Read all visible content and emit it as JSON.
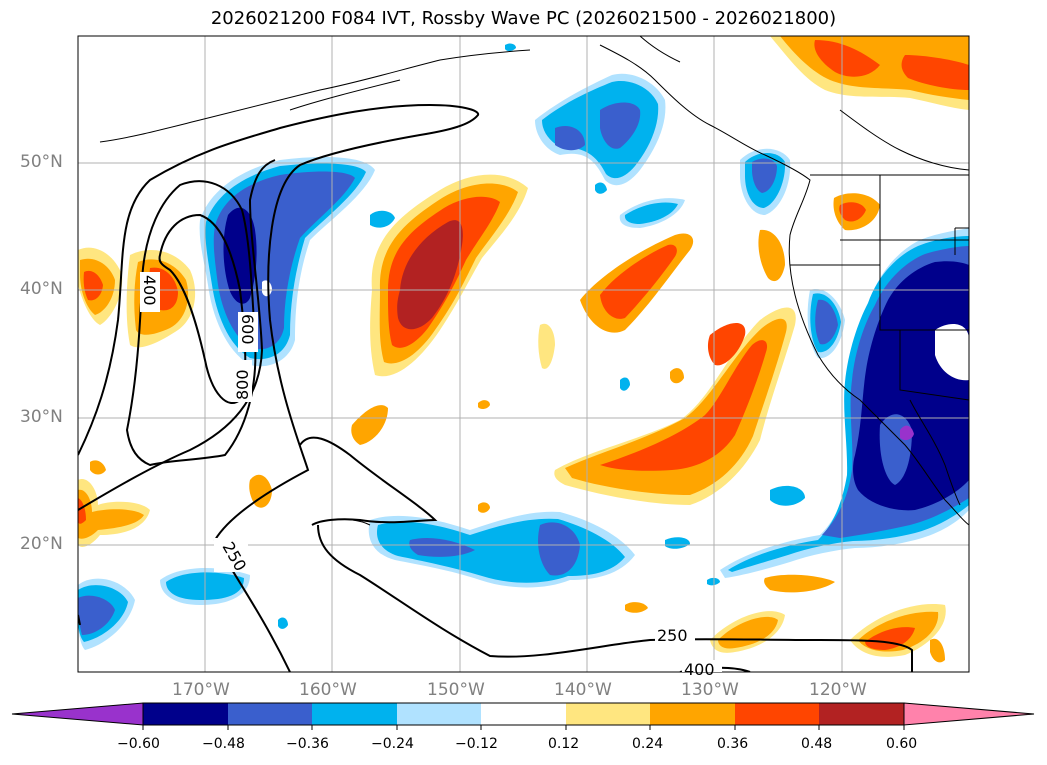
{
  "title": "2026021200 F084 IVT, Rossby Wave PC (2026021500 - 2026021800)",
  "lat_labels": [
    "50°N",
    "40°N",
    "30°N",
    "20°N"
  ],
  "lon_labels": [
    "170°W",
    "160°W",
    "150°W",
    "140°W",
    "130°W",
    "120°W"
  ],
  "contour_labels": [
    "400",
    "600",
    "800",
    "250",
    "250",
    "400"
  ],
  "colorbar": {
    "ticks": [
      "−0.60",
      "−0.48",
      "−0.36",
      "−0.24",
      "−0.12",
      "0.12",
      "0.24",
      "0.36",
      "0.48",
      "0.60"
    ],
    "colors": [
      "#9932cc",
      "#00008b",
      "#3a5fcd",
      "#00b2ee",
      "#b0e2ff",
      "#ffffff",
      "#ffe680",
      "#ffa500",
      "#ff4500",
      "#b22222",
      "#ff82ab"
    ]
  }
}
